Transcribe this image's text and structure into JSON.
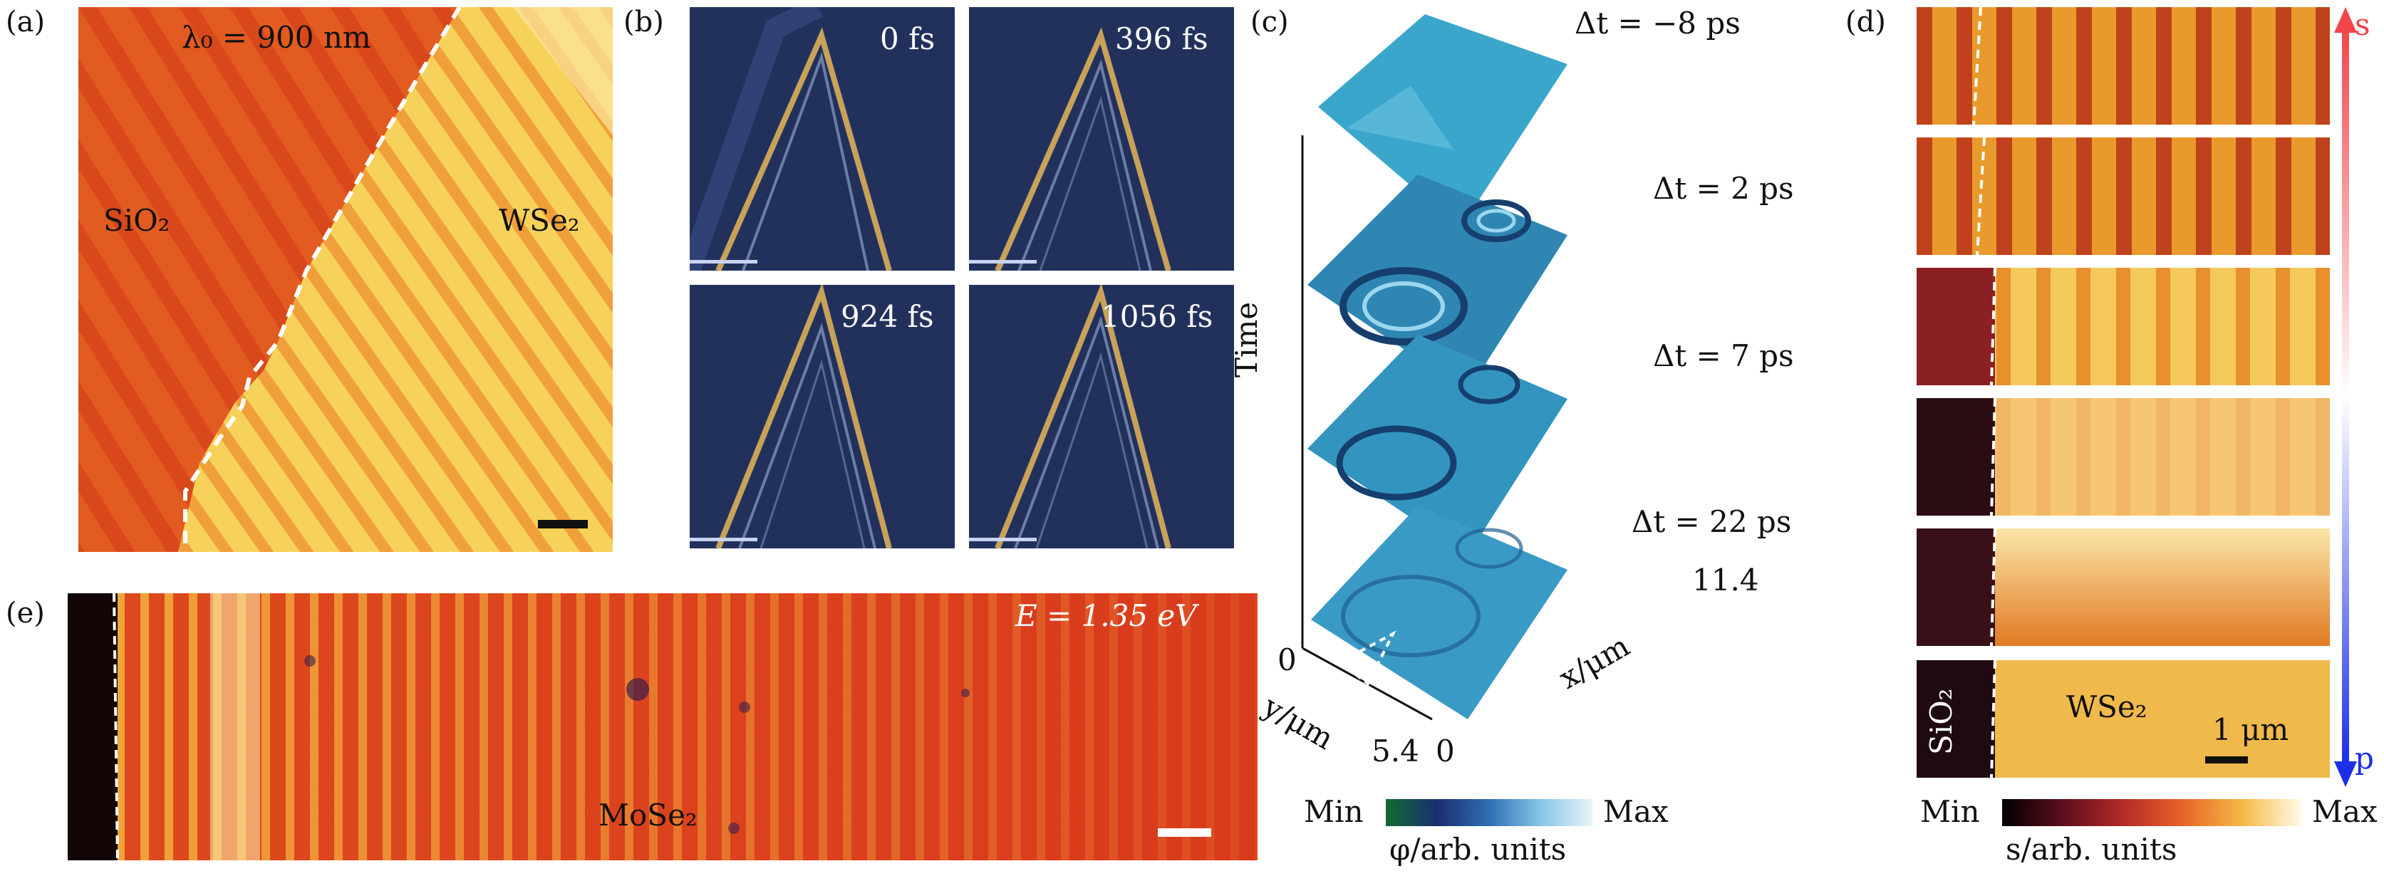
{
  "panels": {
    "a": {
      "label": "(a)",
      "wavelength": "λ₀ = 900 nm",
      "left_material": "SiO₂",
      "right_material": "WSe₂",
      "colors": {
        "bg": "#e0521c",
        "bright": "#f5cc4a"
      }
    },
    "b": {
      "label": "(b)",
      "times": [
        "0 fs",
        "396 fs",
        "924 fs",
        "1056 fs"
      ],
      "colors": {
        "bg": "#23325e",
        "edge": "#c9a25a"
      }
    },
    "c": {
      "label": "(c)",
      "delays": [
        "Δt = −8 ps",
        "Δt = 2 ps",
        "Δt = 7 ps",
        "Δt = 22 ps"
      ],
      "time_axis": "Time",
      "x_axis": "x/μm",
      "y_axis": "y/μm",
      "tick_origin": "0",
      "tick_y_end": "5.4",
      "tick_x_start": "0",
      "tick_x_end": "11.4",
      "colorbar": {
        "min": "Min",
        "max": "Max",
        "label": "φ/arb. units"
      },
      "colors": {
        "surface": "#2f8fb8",
        "light": "#8fd0e8"
      }
    },
    "d": {
      "label": "(d)",
      "pol_top": "s",
      "pol_bottom": "p",
      "left_material": "SiO₂",
      "right_material": "WSe₂",
      "scale": "1 μm",
      "colorbar": {
        "min": "Min",
        "max": "Max",
        "label": "s/arb. units"
      },
      "colors": {
        "arrow_top": "#f0464b",
        "arrow_bottom": "#1a2fe6"
      }
    },
    "e": {
      "label": "(e)",
      "energy": "E = 1.35 eV",
      "material": "MoSe₂",
      "colors": {
        "bg": "#d8381c",
        "fringe": "#f5b640"
      }
    }
  }
}
